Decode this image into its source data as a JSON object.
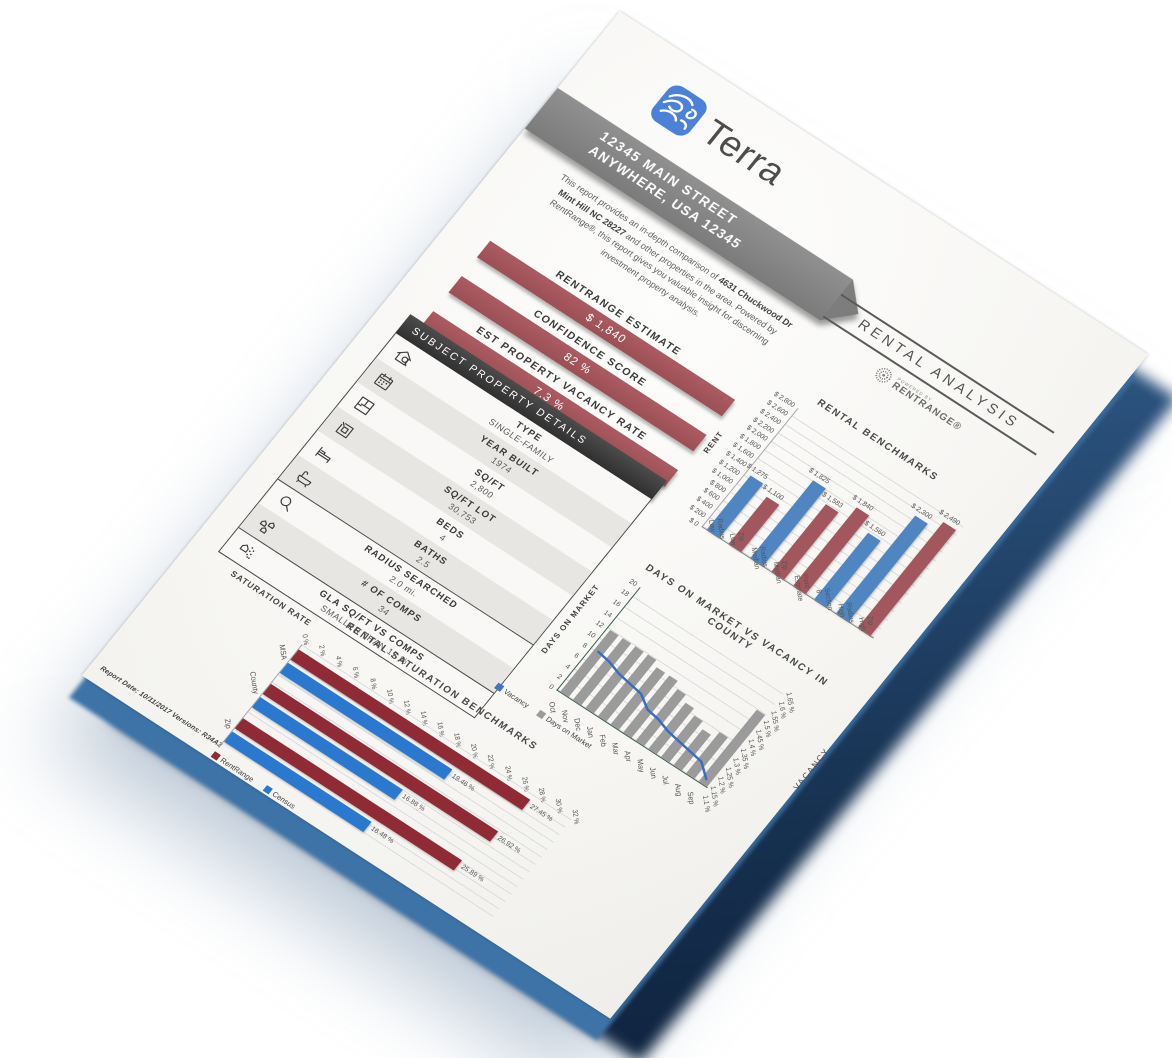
{
  "page": {
    "brand": "Terra",
    "address_line1": "12345 MAIN STREET",
    "address_line2": "ANYWHERE, USA 12345",
    "intro_before": "This report provides an in-depth comparison of ",
    "intro_address": "4631 Chuckwood Dr Mint Hill NC 28227",
    "intro_after": " and other properties in the area. Powered by RentRange®, this report gives you valuable insight for discerning investment property analysis.",
    "footer": "Report Date: 10/11/2017 Versions: R34A3"
  },
  "estimates": [
    {
      "label": "RENTRANGE ESTIMATE",
      "value": "$ 1,840"
    },
    {
      "label": "CONFIDENCE SCORE",
      "value": "82 %"
    },
    {
      "label": "EST PROPERTY VACANCY RATE",
      "value": "7.3 %"
    }
  ],
  "subject_details": {
    "title": "SUBJECT PROPERTY DETAILS",
    "rows": [
      {
        "icon": "house-search-icon",
        "label": "TYPE",
        "value": "SINGLE-FAMILY",
        "section": 1
      },
      {
        "icon": "calendar-icon",
        "label": "YEAR BUILT",
        "value": "1974",
        "section": 1
      },
      {
        "icon": "floorplan-icon",
        "label": "SQ/FT",
        "value": "2,800",
        "section": 1
      },
      {
        "icon": "lot-icon",
        "label": "SQ/FT LOT",
        "value": "30,753",
        "section": 1
      },
      {
        "icon": "bed-icon",
        "label": "BEDS",
        "value": "4",
        "section": 1
      },
      {
        "icon": "bath-icon",
        "label": "BATHS",
        "value": "2.5",
        "section": 1
      },
      {
        "icon": "magnifier-icon",
        "label": "RADIUS SEARCHED",
        "value": "2.0 mi.",
        "section": 2
      },
      {
        "icon": "comps-icon",
        "label": "# OF COMPS",
        "value": "34",
        "section": 2
      },
      {
        "icon": "gla-icon",
        "label": "GLA SQ/FT VS COMPS",
        "value": "SMALLER THAN 17 %",
        "section": 3
      }
    ]
  },
  "rental_analysis": {
    "title": "RENTAL ANALYSIS",
    "powered_by": "POWERED BY",
    "brand": "RENTRANGE®"
  },
  "chart_data": [
    {
      "type": "bar",
      "title": "RENTAL BENCHMARKS",
      "ylabel": "RENT",
      "ylim": [
        0,
        2800
      ],
      "ytick_step": 200,
      "grid": true,
      "categories": [
        "Radius Low",
        "Zip Low",
        "Radius Median",
        "Zip Median",
        "Rent Estimate",
        "Section 8",
        "Radius High",
        "Zip High"
      ],
      "values": [
        1275,
        1100,
        1825,
        1583,
        1840,
        1560,
        2300,
        2490
      ],
      "labels": [
        "$ 1,275",
        "$ 1,100",
        "$ 1,825",
        "$ 1,583",
        "$ 1,840",
        "$ 1,560",
        "$ 2,300",
        "$ 2,490"
      ],
      "bar_colors": [
        "blue",
        "red",
        "blue",
        "red",
        "red",
        "blue",
        "blue",
        "red"
      ]
    },
    {
      "type": "bar+line",
      "title": "DAYS ON MARKET VS VACANCY IN COUNTY",
      "categories": [
        "Oct",
        "Nov",
        "Dec",
        "Jan",
        "Feb",
        "Mar",
        "Apr",
        "May",
        "Jun",
        "Jul",
        "Aug",
        "Sep"
      ],
      "series": [
        {
          "name": "Days on Market",
          "type": "bar",
          "axis": "left",
          "values": [
            12,
            12,
            12,
            12,
            11,
            11,
            10,
            9,
            8,
            7,
            8,
            14
          ]
        },
        {
          "name": "Vacancy",
          "type": "line",
          "axis": "right",
          "values": [
            1.33,
            1.32,
            1.3,
            1.29,
            1.28,
            1.24,
            1.23,
            1.21,
            1.2,
            1.19,
            1.18,
            1.13
          ]
        }
      ],
      "left_axis": {
        "label": "DAYS ON MARKET",
        "lim": [
          0,
          20
        ],
        "step": 2
      },
      "right_axis": {
        "label": "VACANCY",
        "lim": [
          1.1,
          1.65
        ],
        "step": 0.05,
        "suffix": " %"
      },
      "legend": [
        "Vacancy",
        "Days on Market"
      ],
      "grid": true
    },
    {
      "type": "hbar",
      "title": "RENTAL SATURATION BENCHMARKS",
      "xlabel": "SATURATION RATE",
      "xlim": [
        0,
        32
      ],
      "xtick_step": 2,
      "categories": [
        "MSA",
        "County",
        "Zip"
      ],
      "series": [
        {
          "name": "RentRange",
          "values": [
            27.45,
            26.92,
            25.89
          ],
          "labels": [
            "27.45 %",
            "26.92 %",
            "25.89 %"
          ]
        },
        {
          "name": "Census",
          "values": [
            19.46,
            16.88,
            16.48
          ],
          "labels": [
            "19.46 %",
            "16.88 %",
            "16.48 %"
          ]
        }
      ],
      "legend": [
        "RentRange",
        "Census"
      ],
      "grid": true
    }
  ],
  "colors": {
    "accent_red": "#a2565d",
    "dark_red": "#8e2b34",
    "benchmark_blue": "#4f86c2",
    "bright_blue": "#2b79cf",
    "bar_gray": "#9b9b9b",
    "line_blue": "#3b6cc0",
    "legend_blue": "#4472c4",
    "band_gray": "#7d7d7d",
    "panel_dark": "#3f3f3f",
    "logo_blue": "#4b82d8"
  }
}
